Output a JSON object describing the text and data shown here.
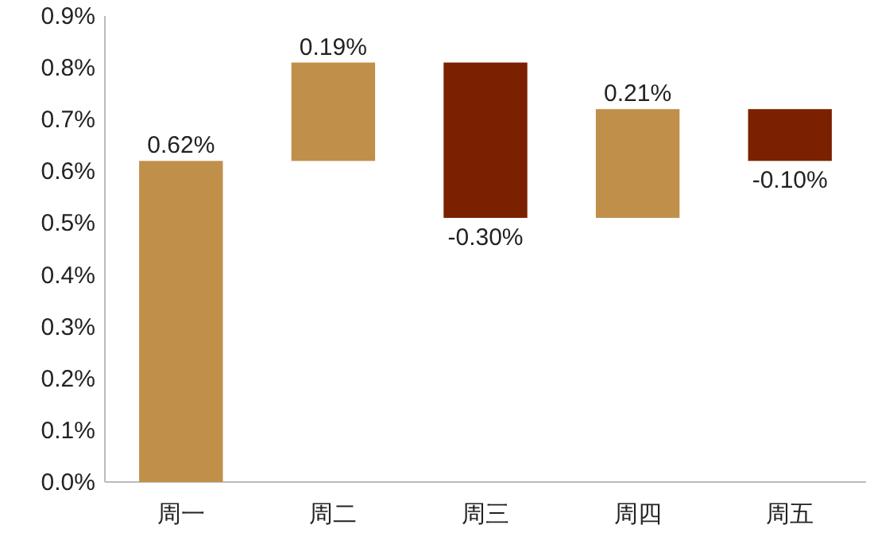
{
  "chart_data": {
    "type": "bar",
    "categories": [
      "周一",
      "周二",
      "周三",
      "周四",
      "周五"
    ],
    "values": [
      0.62,
      0.19,
      -0.3,
      0.21,
      -0.1
    ],
    "base": [
      0,
      0.62,
      0.81,
      0.51,
      0.72
    ],
    "colors": [
      "#c08f4a",
      "#c08f4a",
      "#7b2100",
      "#c08f4a",
      "#7b2100"
    ],
    "value_labels": [
      "0.62%",
      "0.19%",
      "-0.30%",
      "0.21%",
      "-0.10%"
    ],
    "ylim": [
      0,
      0.9
    ],
    "yticks": [
      {
        "value": 0,
        "label": "0.0%"
      },
      {
        "value": 0.1,
        "label": "0.1%"
      },
      {
        "value": 0.2,
        "label": "0.2%"
      },
      {
        "value": 0.3,
        "label": "0.3%"
      },
      {
        "value": 0.4,
        "label": "0.4%"
      },
      {
        "value": 0.5,
        "label": "0.5%"
      },
      {
        "value": 0.6,
        "label": "0.6%"
      },
      {
        "value": 0.7,
        "label": "0.7%"
      },
      {
        "value": 0.8,
        "label": "0.8%"
      },
      {
        "value": 0.9,
        "label": "0.9%"
      }
    ],
    "grid": false
  }
}
